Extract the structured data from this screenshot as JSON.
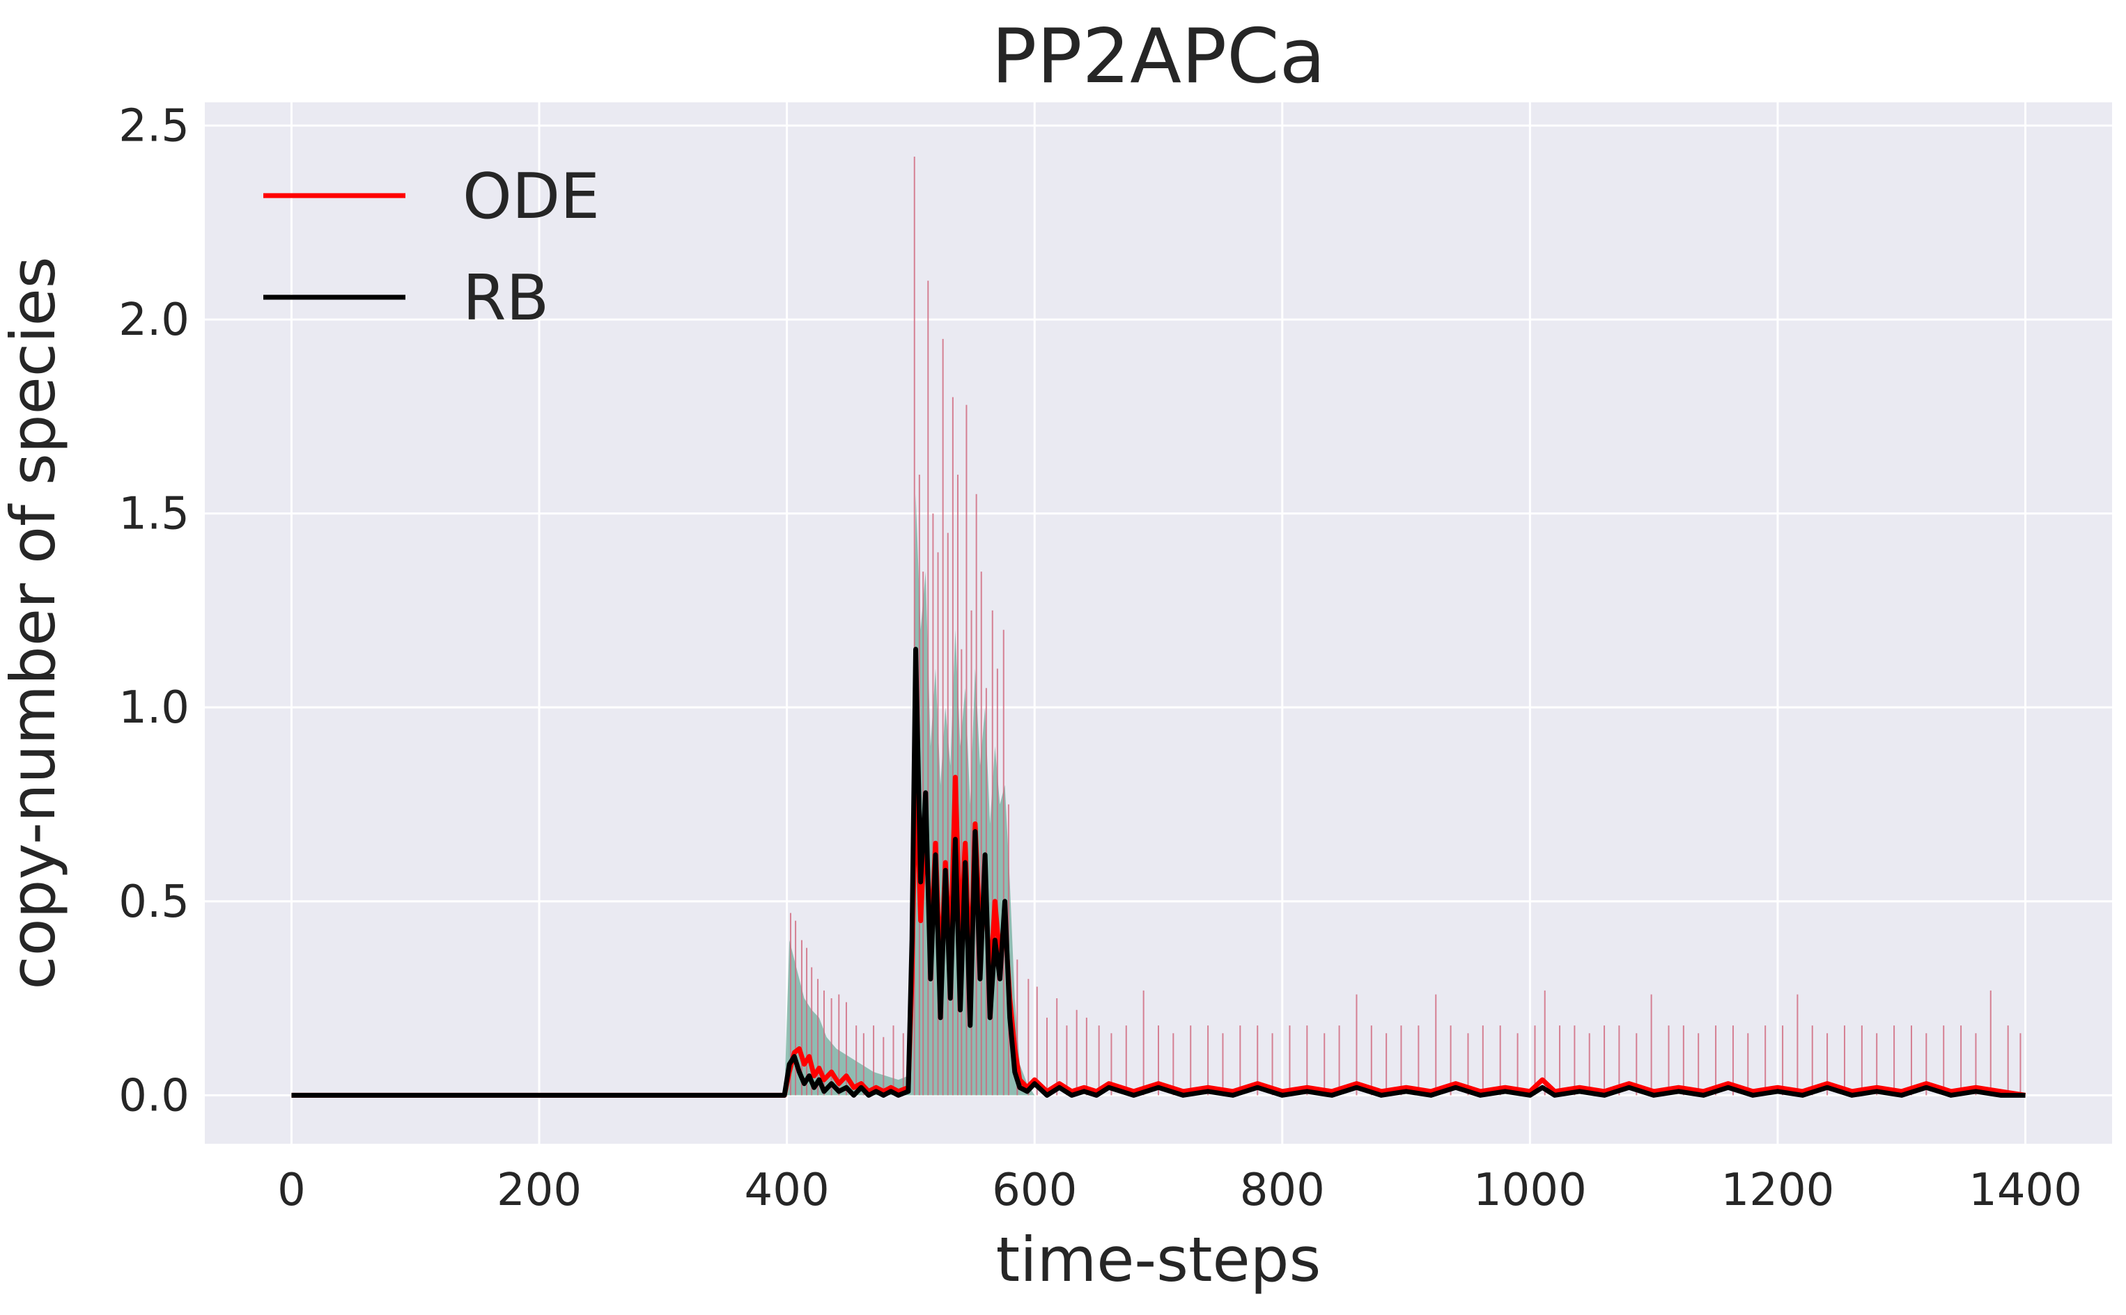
{
  "chart_data": {
    "type": "line",
    "title": "PP2APCa",
    "xlabel": "time-steps",
    "ylabel": "copy-number of species",
    "xlim": [
      -70,
      1470
    ],
    "ylim": [
      -0.125,
      2.56
    ],
    "xticks": [
      0,
      200,
      400,
      600,
      800,
      1000,
      1200,
      1400
    ],
    "xtick_labels": [
      "0",
      "200",
      "400",
      "600",
      "800",
      "1000",
      "1200",
      "1400"
    ],
    "yticks": [
      0.0,
      0.5,
      1.0,
      1.5,
      2.0,
      2.5
    ],
    "ytick_labels": [
      "0.0",
      "0.5",
      "1.0",
      "1.5",
      "2.0",
      "2.5"
    ],
    "grid": true,
    "legend_position": "top-left",
    "background": "#eaeaf2",
    "series": [
      {
        "name": "ODE",
        "color": "#ff0000",
        "points": [
          [
            0,
            0
          ],
          [
            398,
            0
          ],
          [
            402,
            0.06
          ],
          [
            406,
            0.11
          ],
          [
            410,
            0.12
          ],
          [
            414,
            0.08
          ],
          [
            418,
            0.1
          ],
          [
            422,
            0.05
          ],
          [
            426,
            0.07
          ],
          [
            430,
            0.04
          ],
          [
            436,
            0.06
          ],
          [
            442,
            0.03
          ],
          [
            448,
            0.05
          ],
          [
            454,
            0.02
          ],
          [
            460,
            0.03
          ],
          [
            466,
            0.01
          ],
          [
            472,
            0.02
          ],
          [
            478,
            0.01
          ],
          [
            484,
            0.02
          ],
          [
            490,
            0.01
          ],
          [
            498,
            0.02
          ],
          [
            501,
            0.3
          ],
          [
            504,
            0.85
          ],
          [
            508,
            0.45
          ],
          [
            512,
            0.72
          ],
          [
            516,
            0.38
          ],
          [
            520,
            0.65
          ],
          [
            524,
            0.3
          ],
          [
            528,
            0.6
          ],
          [
            532,
            0.35
          ],
          [
            536,
            0.82
          ],
          [
            540,
            0.4
          ],
          [
            544,
            0.65
          ],
          [
            548,
            0.3
          ],
          [
            552,
            0.7
          ],
          [
            556,
            0.42
          ],
          [
            560,
            0.55
          ],
          [
            564,
            0.28
          ],
          [
            568,
            0.5
          ],
          [
            572,
            0.35
          ],
          [
            576,
            0.45
          ],
          [
            580,
            0.25
          ],
          [
            584,
            0.12
          ],
          [
            588,
            0.04
          ],
          [
            594,
            0.02
          ],
          [
            600,
            0.04
          ],
          [
            610,
            0.01
          ],
          [
            620,
            0.03
          ],
          [
            630,
            0.01
          ],
          [
            640,
            0.02
          ],
          [
            650,
            0.01
          ],
          [
            660,
            0.03
          ],
          [
            680,
            0.01
          ],
          [
            700,
            0.03
          ],
          [
            720,
            0.01
          ],
          [
            740,
            0.02
          ],
          [
            760,
            0.01
          ],
          [
            780,
            0.03
          ],
          [
            800,
            0.01
          ],
          [
            820,
            0.02
          ],
          [
            840,
            0.01
          ],
          [
            860,
            0.03
          ],
          [
            880,
            0.01
          ],
          [
            900,
            0.02
          ],
          [
            920,
            0.01
          ],
          [
            940,
            0.03
          ],
          [
            960,
            0.01
          ],
          [
            980,
            0.02
          ],
          [
            1000,
            0.01
          ],
          [
            1010,
            0.04
          ],
          [
            1020,
            0.01
          ],
          [
            1040,
            0.02
          ],
          [
            1060,
            0.01
          ],
          [
            1080,
            0.03
          ],
          [
            1100,
            0.01
          ],
          [
            1120,
            0.02
          ],
          [
            1140,
            0.01
          ],
          [
            1160,
            0.03
          ],
          [
            1180,
            0.01
          ],
          [
            1200,
            0.02
          ],
          [
            1220,
            0.01
          ],
          [
            1240,
            0.03
          ],
          [
            1260,
            0.01
          ],
          [
            1280,
            0.02
          ],
          [
            1300,
            0.01
          ],
          [
            1320,
            0.03
          ],
          [
            1340,
            0.01
          ],
          [
            1360,
            0.02
          ],
          [
            1380,
            0.01
          ],
          [
            1400,
            0.0
          ]
        ]
      },
      {
        "name": "RB",
        "color": "#000000",
        "points": [
          [
            0,
            0
          ],
          [
            398,
            0
          ],
          [
            402,
            0.08
          ],
          [
            406,
            0.1
          ],
          [
            410,
            0.06
          ],
          [
            414,
            0.03
          ],
          [
            418,
            0.05
          ],
          [
            422,
            0.02
          ],
          [
            426,
            0.04
          ],
          [
            430,
            0.01
          ],
          [
            436,
            0.03
          ],
          [
            442,
            0.01
          ],
          [
            448,
            0.02
          ],
          [
            454,
            0.0
          ],
          [
            460,
            0.02
          ],
          [
            466,
            0.0
          ],
          [
            472,
            0.01
          ],
          [
            478,
            0.0
          ],
          [
            484,
            0.01
          ],
          [
            490,
            0.0
          ],
          [
            498,
            0.01
          ],
          [
            501,
            0.4
          ],
          [
            504,
            1.15
          ],
          [
            508,
            0.55
          ],
          [
            512,
            0.78
          ],
          [
            516,
            0.3
          ],
          [
            520,
            0.62
          ],
          [
            524,
            0.2
          ],
          [
            528,
            0.58
          ],
          [
            532,
            0.25
          ],
          [
            536,
            0.66
          ],
          [
            540,
            0.22
          ],
          [
            544,
            0.6
          ],
          [
            548,
            0.18
          ],
          [
            552,
            0.68
          ],
          [
            556,
            0.3
          ],
          [
            560,
            0.62
          ],
          [
            564,
            0.2
          ],
          [
            568,
            0.4
          ],
          [
            572,
            0.3
          ],
          [
            576,
            0.5
          ],
          [
            580,
            0.2
          ],
          [
            584,
            0.06
          ],
          [
            588,
            0.02
          ],
          [
            594,
            0.01
          ],
          [
            600,
            0.03
          ],
          [
            610,
            0.0
          ],
          [
            620,
            0.02
          ],
          [
            630,
            0.0
          ],
          [
            640,
            0.01
          ],
          [
            650,
            0.0
          ],
          [
            660,
            0.02
          ],
          [
            680,
            0.0
          ],
          [
            700,
            0.02
          ],
          [
            720,
            0.0
          ],
          [
            740,
            0.01
          ],
          [
            760,
            0.0
          ],
          [
            780,
            0.02
          ],
          [
            800,
            0.0
          ],
          [
            820,
            0.01
          ],
          [
            840,
            0.0
          ],
          [
            860,
            0.02
          ],
          [
            880,
            0.0
          ],
          [
            900,
            0.01
          ],
          [
            920,
            0.0
          ],
          [
            940,
            0.02
          ],
          [
            960,
            0.0
          ],
          [
            980,
            0.01
          ],
          [
            1000,
            0.0
          ],
          [
            1010,
            0.02
          ],
          [
            1020,
            0.0
          ],
          [
            1040,
            0.01
          ],
          [
            1060,
            0.0
          ],
          [
            1080,
            0.02
          ],
          [
            1100,
            0.0
          ],
          [
            1120,
            0.01
          ],
          [
            1140,
            0.0
          ],
          [
            1160,
            0.02
          ],
          [
            1180,
            0.0
          ],
          [
            1200,
            0.01
          ],
          [
            1220,
            0.0
          ],
          [
            1240,
            0.02
          ],
          [
            1260,
            0.0
          ],
          [
            1280,
            0.01
          ],
          [
            1300,
            0.0
          ],
          [
            1320,
            0.02
          ],
          [
            1340,
            0.0
          ],
          [
            1360,
            0.01
          ],
          [
            1380,
            0.0
          ],
          [
            1400,
            0.0
          ]
        ]
      }
    ],
    "band": {
      "color": "#5ea38f",
      "upper": [
        [
          0,
          0
        ],
        [
          398,
          0
        ],
        [
          402,
          0.4
        ],
        [
          406,
          0.35
        ],
        [
          410,
          0.3
        ],
        [
          414,
          0.25
        ],
        [
          420,
          0.22
        ],
        [
          426,
          0.2
        ],
        [
          432,
          0.15
        ],
        [
          440,
          0.12
        ],
        [
          450,
          0.1
        ],
        [
          460,
          0.08
        ],
        [
          470,
          0.06
        ],
        [
          480,
          0.05
        ],
        [
          490,
          0.04
        ],
        [
          498,
          0.05
        ],
        [
          501,
          0.6
        ],
        [
          504,
          1.55
        ],
        [
          508,
          1.2
        ],
        [
          512,
          1.35
        ],
        [
          516,
          0.9
        ],
        [
          520,
          1.1
        ],
        [
          524,
          0.8
        ],
        [
          528,
          1.0
        ],
        [
          532,
          0.85
        ],
        [
          536,
          1.2
        ],
        [
          540,
          0.9
        ],
        [
          544,
          1.05
        ],
        [
          548,
          0.75
        ],
        [
          552,
          1.1
        ],
        [
          556,
          0.85
        ],
        [
          560,
          1.0
        ],
        [
          564,
          0.7
        ],
        [
          568,
          0.9
        ],
        [
          572,
          0.75
        ],
        [
          576,
          0.8
        ],
        [
          580,
          0.55
        ],
        [
          584,
          0.25
        ],
        [
          588,
          0.08
        ],
        [
          594,
          0.03
        ],
        [
          600,
          0.0
        ],
        [
          1400,
          0.0
        ]
      ],
      "lower": [
        [
          0,
          0
        ],
        [
          1400,
          0
        ]
      ]
    },
    "spikes": {
      "color": "#d0657a",
      "points": [
        [
          403,
          0.47
        ],
        [
          407,
          0.45
        ],
        [
          412,
          0.4
        ],
        [
          416,
          0.38
        ],
        [
          420,
          0.33
        ],
        [
          425,
          0.3
        ],
        [
          430,
          0.27
        ],
        [
          436,
          0.25
        ],
        [
          442,
          0.26
        ],
        [
          448,
          0.24
        ],
        [
          456,
          0.18
        ],
        [
          462,
          0.16
        ],
        [
          470,
          0.18
        ],
        [
          478,
          0.15
        ],
        [
          486,
          0.18
        ],
        [
          494,
          0.16
        ],
        [
          503,
          2.42
        ],
        [
          507,
          1.6
        ],
        [
          510,
          1.35
        ],
        [
          514,
          2.1
        ],
        [
          518,
          1.5
        ],
        [
          522,
          1.4
        ],
        [
          526,
          1.95
        ],
        [
          530,
          1.45
        ],
        [
          534,
          1.8
        ],
        [
          538,
          1.6
        ],
        [
          541,
          1.15
        ],
        [
          545,
          1.78
        ],
        [
          549,
          1.25
        ],
        [
          553,
          1.55
        ],
        [
          557,
          1.35
        ],
        [
          561,
          1.05
        ],
        [
          566,
          1.25
        ],
        [
          570,
          1.1
        ],
        [
          575,
          1.2
        ],
        [
          579,
          0.75
        ],
        [
          586,
          0.35
        ],
        [
          595,
          0.3
        ],
        [
          602,
          0.28
        ],
        [
          610,
          0.2
        ],
        [
          618,
          0.25
        ],
        [
          626,
          0.18
        ],
        [
          634,
          0.22
        ],
        [
          642,
          0.2
        ],
        [
          652,
          0.18
        ],
        [
          662,
          0.16
        ],
        [
          674,
          0.18
        ],
        [
          688,
          0.27
        ],
        [
          700,
          0.18
        ],
        [
          712,
          0.16
        ],
        [
          726,
          0.18
        ],
        [
          740,
          0.18
        ],
        [
          752,
          0.16
        ],
        [
          766,
          0.18
        ],
        [
          780,
          0.18
        ],
        [
          792,
          0.16
        ],
        [
          806,
          0.18
        ],
        [
          820,
          0.18
        ],
        [
          834,
          0.16
        ],
        [
          846,
          0.18
        ],
        [
          860,
          0.26
        ],
        [
          872,
          0.18
        ],
        [
          884,
          0.16
        ],
        [
          896,
          0.18
        ],
        [
          910,
          0.18
        ],
        [
          924,
          0.26
        ],
        [
          936,
          0.18
        ],
        [
          950,
          0.16
        ],
        [
          962,
          0.18
        ],
        [
          976,
          0.18
        ],
        [
          990,
          0.16
        ],
        [
          1004,
          0.18
        ],
        [
          1012,
          0.27
        ],
        [
          1024,
          0.18
        ],
        [
          1036,
          0.18
        ],
        [
          1048,
          0.16
        ],
        [
          1060,
          0.18
        ],
        [
          1072,
          0.18
        ],
        [
          1086,
          0.16
        ],
        [
          1098,
          0.26
        ],
        [
          1112,
          0.18
        ],
        [
          1124,
          0.18
        ],
        [
          1136,
          0.16
        ],
        [
          1150,
          0.18
        ],
        [
          1164,
          0.18
        ],
        [
          1176,
          0.16
        ],
        [
          1190,
          0.18
        ],
        [
          1204,
          0.18
        ],
        [
          1216,
          0.26
        ],
        [
          1228,
          0.18
        ],
        [
          1240,
          0.16
        ],
        [
          1254,
          0.18
        ],
        [
          1268,
          0.18
        ],
        [
          1280,
          0.16
        ],
        [
          1294,
          0.18
        ],
        [
          1308,
          0.18
        ],
        [
          1320,
          0.16
        ],
        [
          1334,
          0.18
        ],
        [
          1348,
          0.18
        ],
        [
          1360,
          0.16
        ],
        [
          1372,
          0.27
        ],
        [
          1386,
          0.18
        ],
        [
          1396,
          0.16
        ]
      ]
    }
  }
}
